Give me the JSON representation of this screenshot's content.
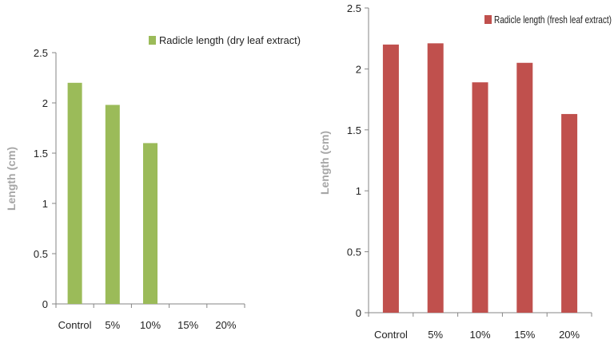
{
  "chart_data": [
    {
      "type": "bar",
      "title": "",
      "xlabel": "",
      "ylabel": "Length (cm)",
      "ylim": [
        0,
        2.5
      ],
      "yticks": [
        "0",
        "0.5",
        "1",
        "1.5",
        "2",
        "2.5"
      ],
      "categories": [
        "Control",
        "5%",
        "10%",
        "15%",
        "20%"
      ],
      "series": [
        {
          "name": "Radicle length (dry leaf extract)",
          "color": "#9bbb59",
          "values": [
            2.2,
            1.98,
            1.6,
            0,
            0
          ]
        }
      ],
      "legend": "top-right",
      "grid": false
    },
    {
      "type": "bar",
      "title": "",
      "xlabel": "",
      "ylabel": "Length (cm)",
      "ylim": [
        0,
        2.5
      ],
      "yticks": [
        "0",
        "0.5",
        "1",
        "1.5",
        "2",
        "2.5"
      ],
      "categories": [
        "Control",
        "5%",
        "10%",
        "15%",
        "20%"
      ],
      "series": [
        {
          "name": "Radicle length (fresh leaf extract)",
          "color": "#c0504d",
          "values": [
            2.2,
            2.21,
            1.89,
            2.05,
            1.63
          ]
        }
      ],
      "legend": "top-right",
      "grid": false
    }
  ]
}
